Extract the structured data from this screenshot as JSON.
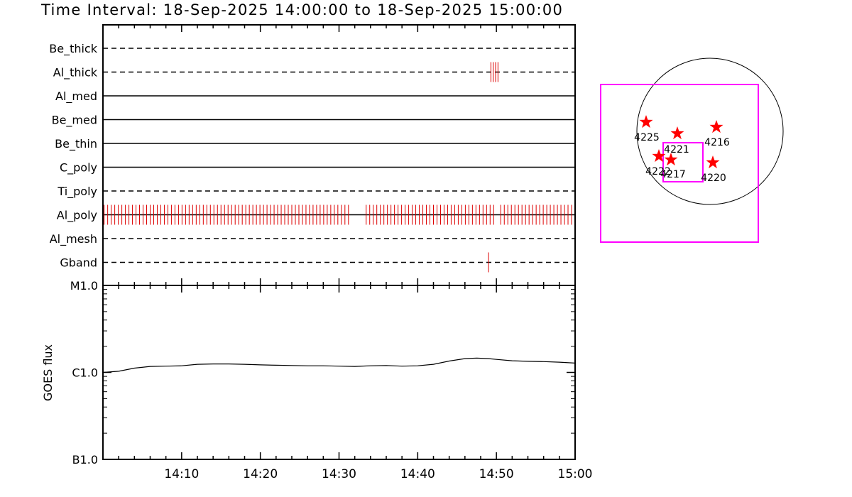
{
  "title": "Time Interval: 18-Sep-2025 14:00:00 to 18-Sep-2025 15:00:00",
  "colors": {
    "axis": "#000000",
    "events": "#dd0000",
    "fov": "#ff00ff",
    "star": "#ff0000"
  },
  "chart_data": [
    {
      "type": "event-timeline",
      "x_start": "14:00",
      "x_end": "15:00",
      "filters": [
        {
          "name": "Be_thick",
          "style": "dashed",
          "events": []
        },
        {
          "name": "Al_thick",
          "style": "dashed",
          "events": [
            49.3,
            49.6,
            49.9,
            50.2
          ]
        },
        {
          "name": "Al_med",
          "style": "solid",
          "events": []
        },
        {
          "name": "Be_med",
          "style": "solid",
          "events": []
        },
        {
          "name": "Be_thin",
          "style": "solid",
          "events": []
        },
        {
          "name": "C_poly",
          "style": "solid",
          "events": []
        },
        {
          "name": "Ti_poly",
          "style": "dashed",
          "events": []
        },
        {
          "name": "Al_poly",
          "style": "solid",
          "events": "dense",
          "gaps": [
            [
              31.5,
              33.0
            ],
            [
              50.0,
              50.3
            ]
          ]
        },
        {
          "name": "Al_mesh",
          "style": "dashed",
          "events": []
        },
        {
          "name": "Gband",
          "style": "dashed",
          "events": [
            49.0
          ]
        }
      ]
    },
    {
      "type": "line",
      "ylabel": "GOES flux",
      "yscale": "log",
      "yticks": [
        "M1.0",
        "C1.0",
        "B1.0"
      ],
      "ylim": [
        "B1.0",
        "M1.0"
      ],
      "x_ticks": [
        "14:10",
        "14:20",
        "14:30",
        "14:40",
        "14:50",
        "15:00"
      ],
      "series": [
        {
          "x_minutes": [
            0,
            2,
            4,
            6,
            8,
            10,
            12,
            14,
            16,
            18,
            20,
            22,
            24,
            26,
            28,
            30,
            32,
            34,
            36,
            38,
            40,
            42,
            44,
            46,
            47.5,
            49,
            50,
            52,
            54,
            56,
            58,
            60
          ],
          "y_goes_class": [
            "C1.0",
            "C1.03",
            "C1.12",
            "C1.17",
            "C1.18",
            "C1.19",
            "C1.24",
            "C1.25",
            "C1.25",
            "C1.24",
            "C1.22",
            "C1.21",
            "C1.2",
            "C1.19",
            "C1.19",
            "C1.18",
            "C1.17",
            "C1.19",
            "C1.2",
            "C1.18",
            "C1.19",
            "C1.24",
            "C1.35",
            "C1.44",
            "C1.46",
            "C1.44",
            "C1.41",
            "C1.36",
            "C1.34",
            "C1.33",
            "C1.31",
            "C1.28"
          ]
        }
      ]
    }
  ],
  "locator": {
    "active_regions": [
      "4225",
      "4221",
      "4216",
      "4222",
      "4217",
      "4220"
    ]
  }
}
